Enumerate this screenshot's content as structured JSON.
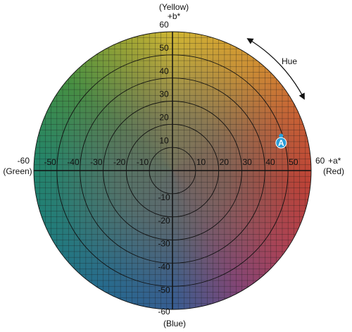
{
  "chart_data": {
    "type": "scatter",
    "xlim": [
      -60,
      60
    ],
    "ylim": [
      -60,
      60
    ],
    "xticks": [
      -60,
      -50,
      -40,
      -30,
      -20,
      -10,
      10,
      20,
      30,
      40,
      50,
      60
    ],
    "yticks": [
      -60,
      -50,
      -40,
      -30,
      -20,
      -10,
      10,
      20,
      30,
      40,
      50,
      60
    ],
    "x_axis_name": "+a*",
    "x_axis_positive": "(Red)",
    "x_axis_negative": "(Green)",
    "y_axis_name": "+b*",
    "y_axis_positive": "(Yellow)",
    "y_axis_negative": "(Blue)",
    "annotation": "Hue",
    "grid": true,
    "rings": true,
    "series": [
      {
        "name": "A",
        "color": "#2b9fd9",
        "x": [
          47
        ],
        "values": [
          12
        ]
      }
    ]
  }
}
